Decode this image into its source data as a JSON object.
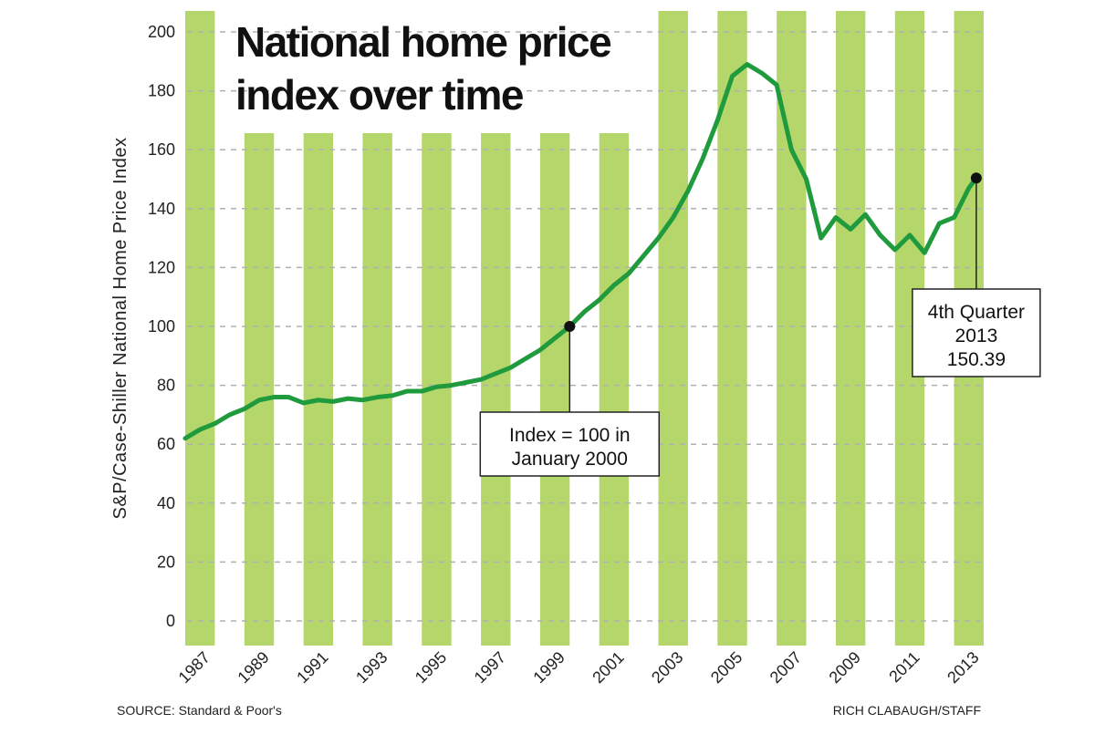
{
  "chart_data": {
    "type": "line",
    "title_lines": [
      "National home price",
      "index over time"
    ],
    "y_label": "S&P/Case-Shiller National Home Price Index",
    "source": "SOURCE: Standard & Poor's",
    "credit": "RICH CLABAUGH/STAFF",
    "x": [
      1987,
      1987.5,
      1988,
      1988.5,
      1989,
      1989.5,
      1990,
      1990.5,
      1991,
      1991.5,
      1992,
      1992.5,
      1993,
      1993.5,
      1994,
      1994.5,
      1995,
      1995.5,
      1996,
      1996.5,
      1997,
      1997.5,
      1998,
      1998.5,
      1999,
      1999.5,
      2000,
      2000.5,
      2001,
      2001.5,
      2002,
      2002.5,
      2003,
      2003.5,
      2004,
      2004.5,
      2005,
      2005.5,
      2006,
      2006.5,
      2007,
      2007.5,
      2008,
      2008.5,
      2009,
      2009.5,
      2010,
      2010.5,
      2011,
      2011.5,
      2012,
      2012.5,
      2013,
      2013.5,
      2013.75
    ],
    "series": [
      {
        "name": "Index",
        "color": "#1f9a3c",
        "values": [
          62,
          65,
          67,
          70,
          72,
          75,
          76,
          76,
          74,
          75,
          74.5,
          75.5,
          75,
          76,
          76.5,
          78,
          78,
          79.5,
          80,
          81,
          82,
          84,
          86,
          89,
          92,
          96,
          100,
          105,
          109,
          114,
          118,
          124,
          130,
          137,
          146,
          157,
          170,
          185,
          189,
          186,
          182,
          160,
          150,
          130,
          137,
          133,
          138,
          131,
          126,
          131,
          125,
          135,
          137,
          147,
          150.39
        ]
      }
    ],
    "xlim": [
      1987,
      2014
    ],
    "xticks": [
      1987,
      1989,
      1991,
      1993,
      1995,
      1997,
      1999,
      2001,
      2003,
      2005,
      2007,
      2009,
      2011,
      2013
    ],
    "ylim": [
      0,
      200
    ],
    "yticks": [
      0,
      20,
      40,
      60,
      80,
      100,
      120,
      140,
      160,
      180,
      200
    ],
    "grid": true,
    "stripe_color": "#b5d66a",
    "annotations": [
      {
        "x": 2000,
        "lines": [
          "Index = 100 in",
          "January 2000"
        ]
      },
      {
        "x": 2013.75,
        "lines": [
          "4th Quarter",
          "2013",
          "150.39"
        ]
      }
    ]
  }
}
